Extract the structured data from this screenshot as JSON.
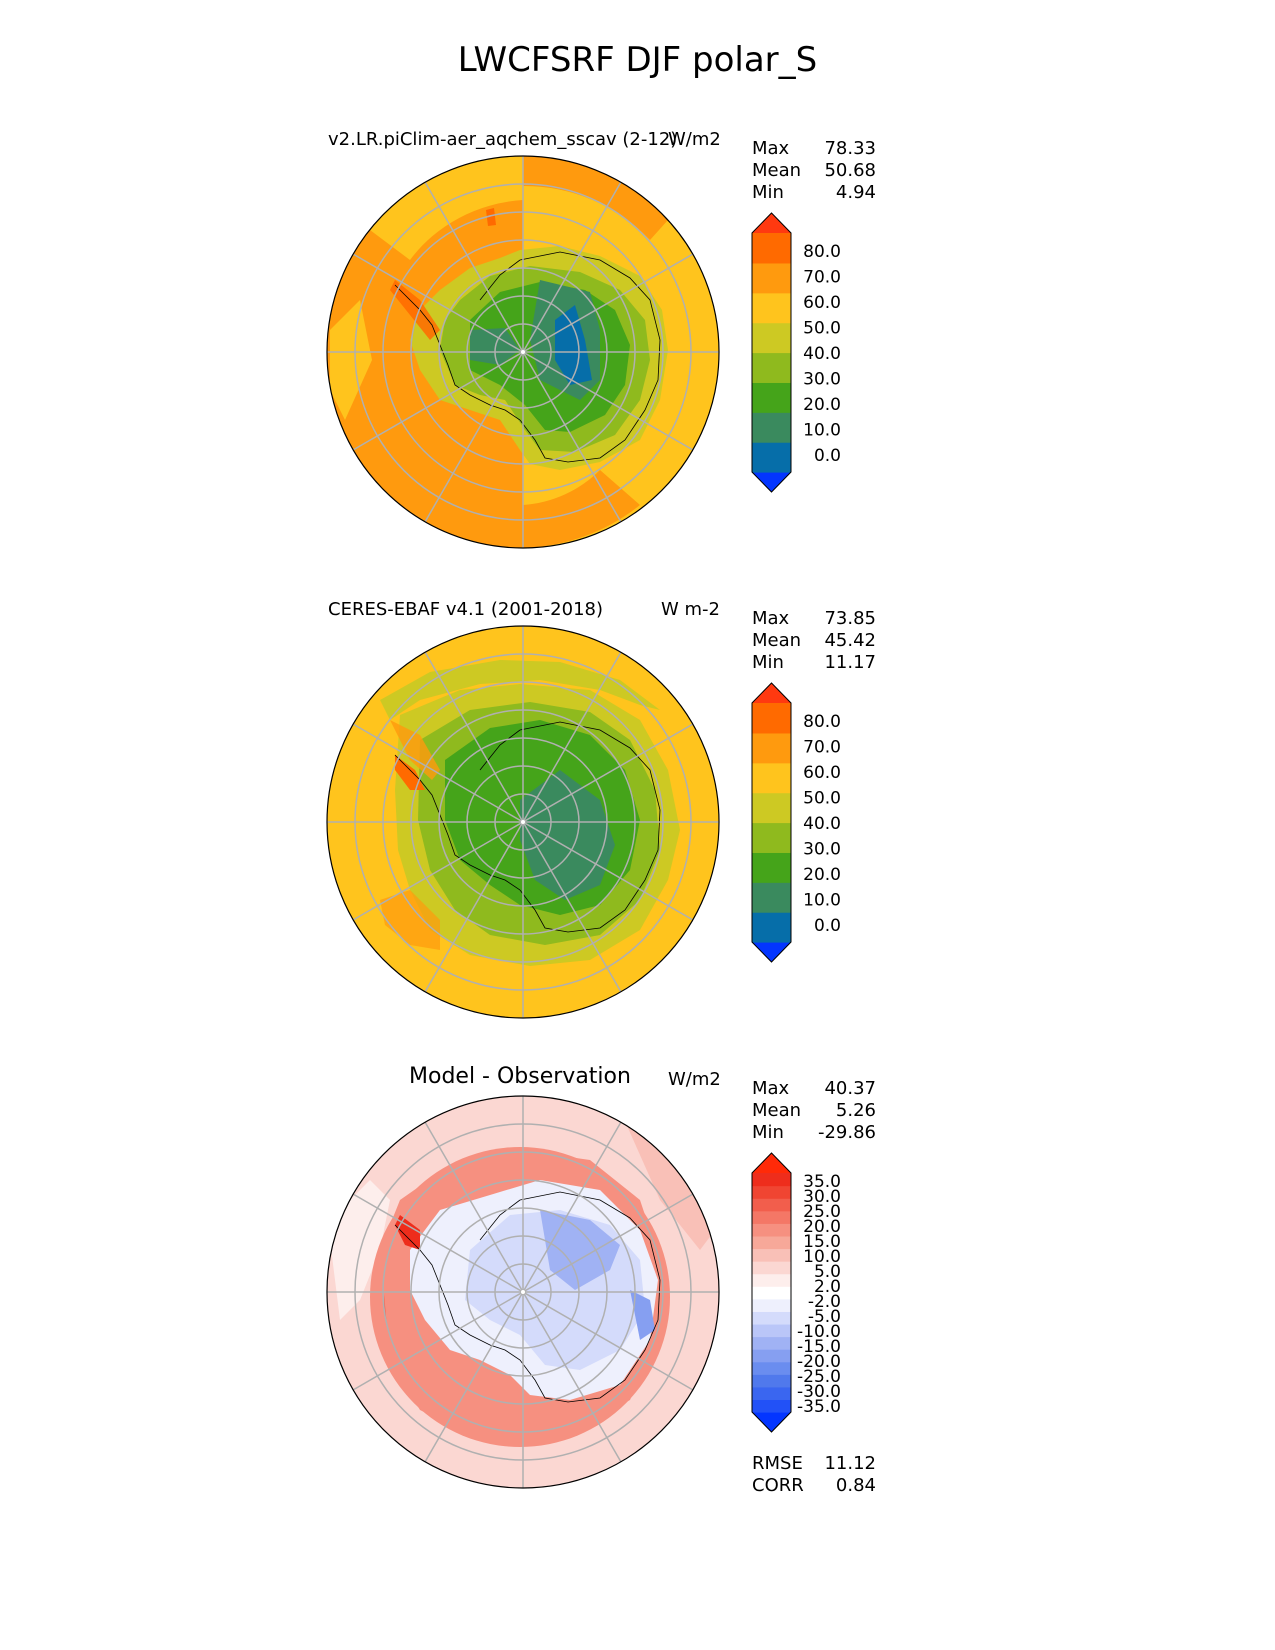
{
  "title": "LWCFSRF DJF polar_S",
  "panels": [
    {
      "left_title": "v2.LR.piClim-aer_aqchem_sscav (2-12)",
      "right_title": "W/m2",
      "stats": [
        {
          "label": "Max",
          "value": "78.33"
        },
        {
          "label": "Mean",
          "value": "50.68"
        },
        {
          "label": "Min",
          "value": "4.94"
        }
      ],
      "colorbar": {
        "colors": [
          "#0335ff",
          "#066ea9",
          "#3a8a5e",
          "#45a41a",
          "#8fba1e",
          "#cdc923",
          "#ffc41d",
          "#ff9a0e",
          "#ff6a00",
          "#ff3910"
        ],
        "ticks": [
          "80.0",
          "70.0",
          "60.0",
          "50.0",
          "40.0",
          "30.0",
          "20.0",
          "10.0",
          "0.0"
        ]
      }
    },
    {
      "left_title": "CERES-EBAF v4.1 (2001-2018)",
      "right_title": "W m-2",
      "stats": [
        {
          "label": "Max",
          "value": "73.85"
        },
        {
          "label": "Mean",
          "value": "45.42"
        },
        {
          "label": "Min",
          "value": "11.17"
        }
      ],
      "colorbar": {
        "colors": [
          "#0335ff",
          "#066ea9",
          "#3a8a5e",
          "#45a41a",
          "#8fba1e",
          "#cdc923",
          "#ffc41d",
          "#ff9a0e",
          "#ff6a00",
          "#ff3910"
        ],
        "ticks": [
          "80.0",
          "70.0",
          "60.0",
          "50.0",
          "40.0",
          "30.0",
          "20.0",
          "10.0",
          "0.0"
        ]
      }
    },
    {
      "center_title": "Model - Observation",
      "right_title": "W/m2",
      "stats": [
        {
          "label": "Max",
          "value": "40.37"
        },
        {
          "label": "Mean",
          "value": "5.26"
        },
        {
          "label": "Min",
          "value": "-29.86"
        }
      ],
      "extra_stats": [
        {
          "label": "RMSE",
          "value": "11.12"
        },
        {
          "label": "CORR",
          "value": "0.84"
        }
      ],
      "colorbar": {
        "colors": [
          "#0335ff",
          "#2251f7",
          "#3a66f0",
          "#5079ec",
          "#6a8def",
          "#869ff1",
          "#a0b2f4",
          "#bac6f8",
          "#d4dbfb",
          "#eef0fd",
          "#ffffff",
          "#fdeeec",
          "#fbd7d2",
          "#f9c0b7",
          "#f7a899",
          "#f69080",
          "#f47766",
          "#f25e4c",
          "#f04532",
          "#ee2d1c",
          "#ff2a08"
        ],
        "ticks": [
          "35.0",
          "30.0",
          "25.0",
          "20.0",
          "15.0",
          "10.0",
          "5.0",
          "2.0",
          "-2.0",
          "-5.0",
          "-10.0",
          "-15.0",
          "-20.0",
          "-25.0",
          "-30.0",
          "-35.0"
        ]
      }
    }
  ]
}
